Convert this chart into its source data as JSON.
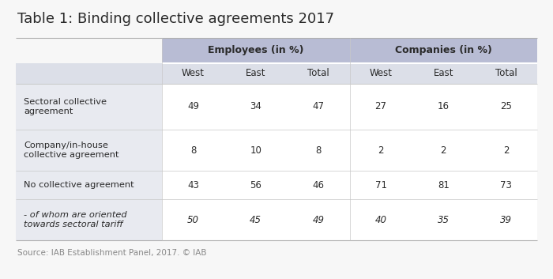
{
  "title": "Table 1: Binding collective agreements 2017",
  "header_group1": "Employees (in %)",
  "header_group2": "Companies (in %)",
  "subheaders": [
    "West",
    "East",
    "Total",
    "West",
    "East",
    "Total"
  ],
  "row_labels": [
    "Sectoral collective\nagreement",
    "Company/in-house\ncollective agreement",
    "No collective agreement",
    "- of whom are oriented\ntowards sectoral tariff"
  ],
  "data": [
    [
      49,
      34,
      47,
      27,
      16,
      25
    ],
    [
      8,
      10,
      8,
      2,
      2,
      2
    ],
    [
      43,
      56,
      46,
      71,
      81,
      73
    ],
    [
      50,
      45,
      49,
      40,
      35,
      39
    ]
  ],
  "italic_row": [
    false,
    false,
    false,
    true
  ],
  "source": "Source: IAB Establishment Panel, 2017. © IAB",
  "header_bg": "#b8bcd4",
  "subheader_bg": "#dcdfe8",
  "label_col_bg": "#e8eaf0",
  "data_bg": "#ffffff",
  "border_color": "#c8c8c8",
  "title_color": "#2a2a2a",
  "text_color": "#2a2a2a",
  "source_color": "#888888",
  "background": "#f7f7f7",
  "table_border": "#b0b0b0"
}
